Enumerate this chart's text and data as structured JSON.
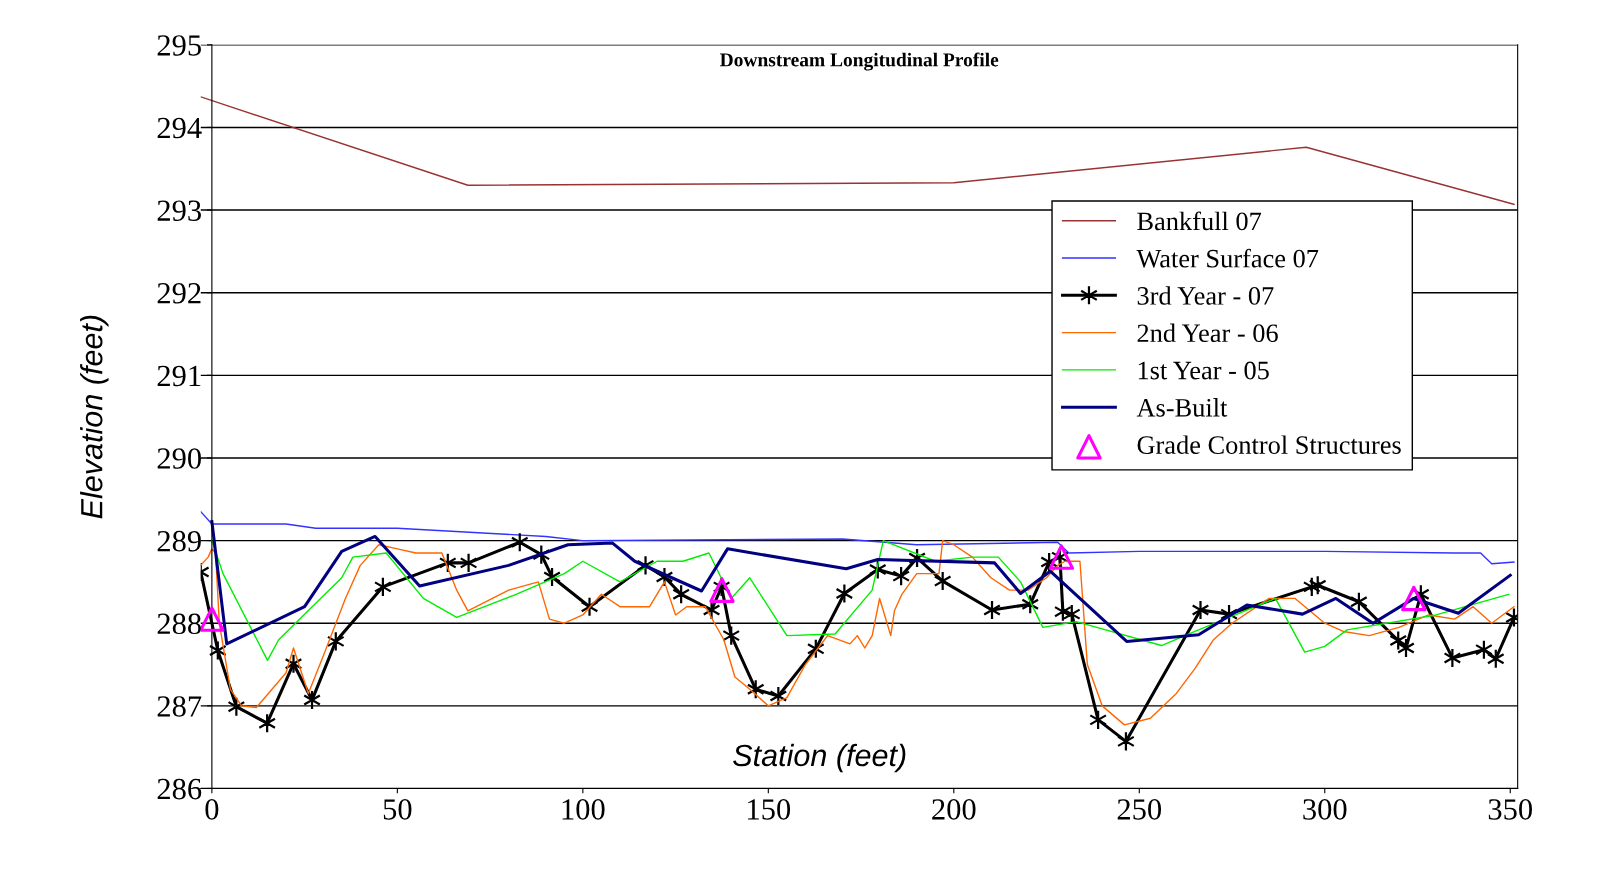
{
  "chart_data": {
    "type": "line",
    "title": "Downstream Longitudinal Profile",
    "xlabel": "Station (feet)",
    "ylabel": "Elevation (feet)",
    "xlim": [
      -3,
      352
    ],
    "xticks": [
      0,
      50,
      100,
      150,
      200,
      250,
      300,
      350
    ],
    "ylim": [
      286,
      295
    ],
    "yticks": [
      286,
      287,
      288,
      289,
      290,
      291,
      292,
      293,
      294,
      295
    ],
    "grid": "y",
    "legend": "right",
    "series": [
      {
        "name": "Bankfull 07",
        "color": "#993333",
        "x": [
          -3,
          69,
          200,
          295,
          351
        ],
        "values": [
          294.37,
          293.3,
          293.33,
          293.76,
          293.07
        ]
      },
      {
        "name": "Water Surface 07",
        "color": "#3333ff",
        "x": [
          -3,
          0,
          20,
          28,
          50,
          90,
          100,
          170,
          190,
          228,
          231,
          250,
          300,
          335,
          342,
          345,
          351
        ],
        "values": [
          289.35,
          289.2,
          289.2,
          289.15,
          289.15,
          289.05,
          289.0,
          289.02,
          288.95,
          288.98,
          288.85,
          288.87,
          288.87,
          288.85,
          288.85,
          288.72,
          288.74
        ]
      },
      {
        "name": "3rd Year - 07",
        "color": "#000000",
        "marker": "cross",
        "x": [
          -3,
          1.6,
          6.6,
          14.9,
          22,
          27,
          33.4,
          46.1,
          63.6,
          69.2,
          83,
          88.8,
          91.7,
          101.8,
          116.9,
          122,
          126.5,
          134.7,
          137.4,
          140,
          146.6,
          152.7,
          162.8,
          170.5,
          179.5,
          185.8,
          190.1,
          197,
          210.3,
          220.6,
          225.7,
          228.6,
          229.4,
          231.8,
          238.9,
          246.4,
          266.5,
          274.2,
          296.5,
          298.1,
          309.2,
          319.8,
          321.9,
          325.9,
          334.4,
          342.9,
          346.1,
          351
        ],
        "values": [
          288.62,
          287.67,
          286.99,
          286.79,
          287.51,
          287.07,
          287.78,
          288.44,
          288.73,
          288.73,
          288.98,
          288.83,
          288.56,
          288.2,
          288.7,
          288.56,
          288.35,
          288.16,
          288.44,
          287.85,
          287.2,
          287.12,
          287.69,
          288.36,
          288.65,
          288.57,
          288.79,
          288.51,
          288.16,
          288.23,
          288.74,
          288.8,
          288.14,
          288.11,
          286.83,
          286.57,
          288.16,
          288.11,
          288.44,
          288.46,
          288.26,
          287.79,
          287.7,
          288.35,
          287.58,
          287.68,
          287.57,
          288.07
        ]
      },
      {
        "name": "2nd Year - 06",
        "color": "#ff6600",
        "x": [
          -3,
          -1,
          0,
          1,
          2,
          5,
          8,
          12,
          20,
          22,
          26,
          30,
          36,
          40,
          45,
          50,
          55,
          62,
          66,
          69,
          80,
          88,
          91,
          95,
          100,
          105,
          110,
          118,
          122,
          125,
          128,
          133,
          138,
          141,
          145,
          150,
          155,
          160,
          166,
          172,
          174,
          176,
          178,
          180,
          181,
          183,
          184,
          186,
          190,
          196,
          197,
          200,
          205,
          210,
          215,
          220,
          225,
          228,
          230,
          234,
          236,
          240,
          246,
          253,
          260,
          265,
          270,
          275,
          285,
          292,
          300,
          305,
          312,
          320,
          328,
          335,
          340,
          345,
          351
        ],
        "values": [
          288.7,
          288.8,
          288.9,
          288.85,
          288.0,
          287.2,
          287.0,
          286.98,
          287.4,
          287.7,
          287.15,
          287.6,
          288.3,
          288.7,
          288.95,
          288.9,
          288.85,
          288.85,
          288.4,
          288.15,
          288.4,
          288.5,
          288.05,
          288.0,
          288.1,
          288.35,
          288.2,
          288.2,
          288.5,
          288.1,
          288.2,
          288.2,
          287.8,
          287.35,
          287.2,
          287.0,
          287.1,
          287.5,
          287.85,
          287.75,
          287.85,
          287.7,
          287.85,
          288.3,
          288.15,
          287.85,
          288.15,
          288.35,
          288.6,
          288.6,
          289.0,
          288.95,
          288.8,
          288.55,
          288.4,
          288.4,
          288.55,
          288.7,
          288.75,
          288.75,
          287.5,
          287.0,
          286.77,
          286.85,
          287.15,
          287.45,
          287.8,
          288.0,
          288.3,
          288.3,
          288.0,
          287.9,
          287.85,
          287.95,
          288.1,
          288.05,
          288.2,
          288.0,
          288.2
        ]
      },
      {
        "name": "1st Year - 05",
        "color": "#00ee00",
        "x": [
          0,
          3,
          15,
          18,
          35,
          38,
          47,
          57,
          66,
          82,
          95,
          100,
          110,
          120,
          127,
          134,
          140,
          145,
          155,
          168,
          178,
          181,
          195,
          205,
          212,
          218,
          224,
          233,
          256,
          265,
          286.7,
          294.6,
          300,
          306,
          330,
          349.6
        ],
        "values": [
          289.0,
          288.6,
          287.55,
          287.8,
          288.55,
          288.8,
          288.85,
          288.3,
          288.07,
          288.35,
          288.6,
          288.75,
          288.5,
          288.75,
          288.75,
          288.85,
          288.3,
          288.55,
          287.85,
          287.87,
          288.4,
          289.0,
          288.75,
          288.8,
          288.8,
          288.5,
          287.95,
          288.02,
          287.73,
          287.9,
          288.3,
          287.65,
          287.72,
          287.92,
          288.1,
          288.35
        ]
      },
      {
        "name": "As-Built",
        "color": "#000080",
        "x": [
          0,
          4,
          25,
          35,
          44,
          56,
          80,
          96,
          108,
          114,
          132,
          139,
          171,
          179.5,
          211,
          218,
          226,
          246.6,
          266,
          279,
          294,
          303,
          313,
          324,
          336,
          350
        ],
        "values": [
          289.23,
          287.75,
          288.2,
          288.87,
          289.05,
          288.45,
          288.7,
          288.95,
          288.97,
          288.75,
          288.39,
          288.9,
          288.66,
          288.77,
          288.73,
          288.36,
          288.63,
          287.78,
          287.86,
          288.22,
          288.11,
          288.3,
          288.0,
          288.3,
          288.12,
          288.58
        ]
      },
      {
        "name": "Grade Control Structures",
        "type": "scatter",
        "color": "#ff00ff",
        "marker": "triangle",
        "x": [
          0,
          137.5,
          229,
          324
        ],
        "values": [
          288.05,
          288.4,
          288.8,
          288.3
        ]
      }
    ]
  }
}
